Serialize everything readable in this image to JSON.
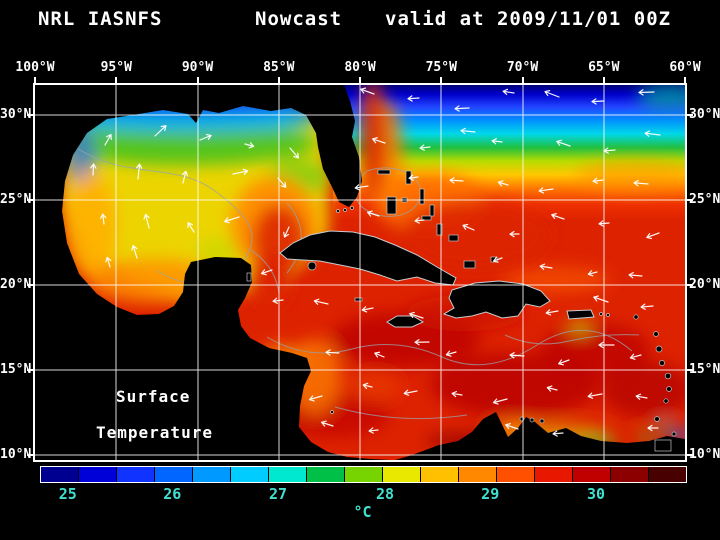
{
  "header": {
    "left": "NRL IASNFS",
    "center": "Nowcast",
    "right": "valid at 2009/11/01 00Z"
  },
  "map": {
    "lon_labels": [
      "100°W",
      "95°W",
      "90°W",
      "85°W",
      "80°W",
      "75°W",
      "70°W",
      "65°W",
      "60°W"
    ],
    "lat_labels": [
      "30°N",
      "25°N",
      "20°N",
      "15°N",
      "10°N"
    ],
    "overlay_line1": "Surface",
    "overlay_line2": "Temperature",
    "vector_color": "#ffffff",
    "grid_color": "#ffffff"
  },
  "colorbar": {
    "unit": "°C",
    "ticks": [
      "25",
      "26",
      "27",
      "28",
      "29",
      "30"
    ],
    "tick_positions_pct": [
      4.3,
      20.5,
      36.9,
      53.5,
      69.8,
      86.2
    ],
    "label_color": "#40e0d0",
    "segment_colors": [
      "#000090",
      "#0000d8",
      "#1133ff",
      "#0066ff",
      "#0099ff",
      "#00ccff",
      "#00e8d0",
      "#00c048",
      "#78d400",
      "#e8e800",
      "#ffc000",
      "#ff8800",
      "#ff5000",
      "#e81800",
      "#c00000",
      "#8c0000",
      "#480000"
    ]
  }
}
